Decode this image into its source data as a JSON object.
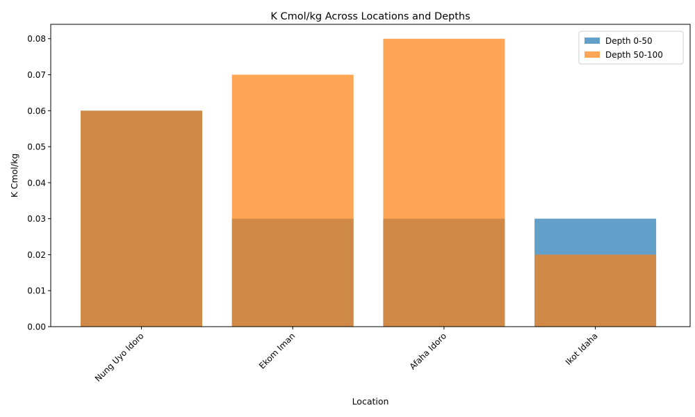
{
  "chart_data": {
    "type": "bar",
    "title": "K Cmol/kg Across Locations and Depths",
    "xlabel": "Location",
    "ylabel": "K Cmol/kg",
    "categories": [
      "Nung Uyo Idoro",
      "Ekom Iman",
      "Afaha Idoro",
      "Ikot Idaha"
    ],
    "series": [
      {
        "name": "Depth 0-50",
        "values": [
          0.06,
          0.03,
          0.03,
          0.03
        ],
        "color": "#1f77b4"
      },
      {
        "name": "Depth 50-100",
        "values": [
          0.06,
          0.07,
          0.08,
          0.02
        ],
        "color": "#ff7f0e"
      }
    ],
    "ylim": [
      0,
      0.084
    ],
    "yticks": [
      "0.00",
      "0.01",
      "0.02",
      "0.03",
      "0.04",
      "0.05",
      "0.06",
      "0.07",
      "0.08"
    ],
    "grid": false,
    "legend_position": "top-right",
    "bar_opacity": 0.7
  }
}
